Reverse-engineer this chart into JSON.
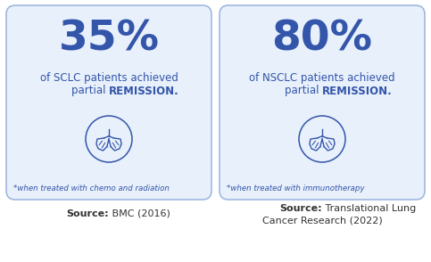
{
  "bg_color": "#ffffff",
  "card_bg_color": "#e8f0fb",
  "card_border_color": "#a0b8e0",
  "text_color": "#3355aa",
  "source_color": "#333333",
  "card1": {
    "percent": "35%",
    "line1": "of SCLC patients achieved",
    "line2_normal": "partial ",
    "line2_bold": "REMISSION.",
    "footnote": "*when treated with chemo and radiation",
    "source_bold": "Source:",
    "source_normal": " BMC (2016)"
  },
  "card2": {
    "percent": "80%",
    "line1": "of NSCLC patients achieved",
    "line2_normal": "partial ",
    "line2_bold": "REMISSION.",
    "footnote": "*when treated with immunotherapy",
    "source_bold": "Source:",
    "source_normal": " Translational Lung\nCancer Research (2022)"
  },
  "fig_w": 4.83,
  "fig_h": 2.94,
  "dpi": 100
}
